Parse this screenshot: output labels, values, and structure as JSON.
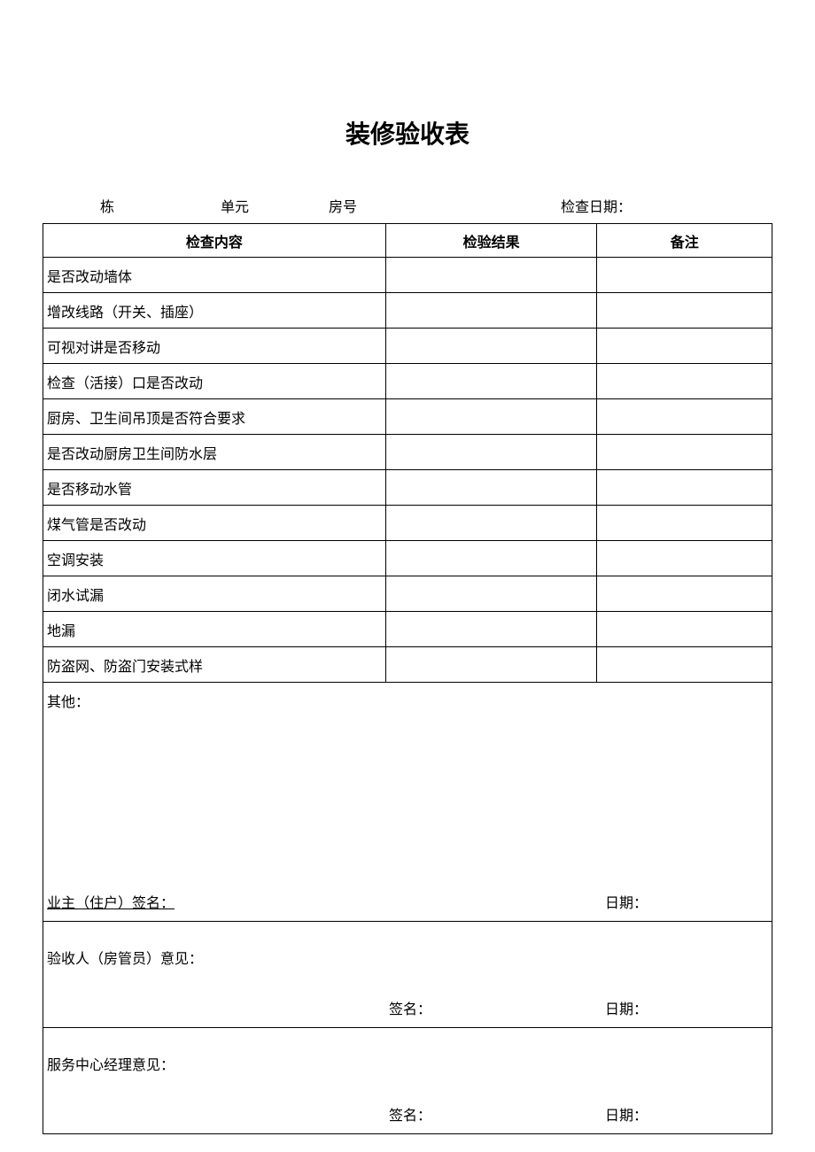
{
  "document": {
    "title": "装修验收表",
    "info": {
      "building": "栋",
      "unit": "单元",
      "room": "房号",
      "inspection_date": "检查日期："
    },
    "headers": {
      "content": "检查内容",
      "result": "检验结果",
      "remark": "备注"
    },
    "rows": [
      "是否改动墙体",
      "增改线路（开关、插座）",
      "可视对讲是否移动",
      "检查（活接）口是否改动",
      "厨房、卫生间吊顶是否符合要求",
      "是否改动厨房卫生间防水层",
      "是否移动水管",
      "煤气管是否改动",
      "空调安装",
      "闭水试漏",
      "地漏",
      "防盗网、防盗门安装式样"
    ],
    "other": {
      "label": "其他：",
      "owner_sign": "业主（住户）签名：",
      "owner_date": "日期："
    },
    "inspector": {
      "label": "验收人（房管员）意见：",
      "sign": "签名：",
      "date": "日期："
    },
    "manager": {
      "label": "服务中心经理意见：",
      "sign": "签名：",
      "date": "日期："
    }
  }
}
